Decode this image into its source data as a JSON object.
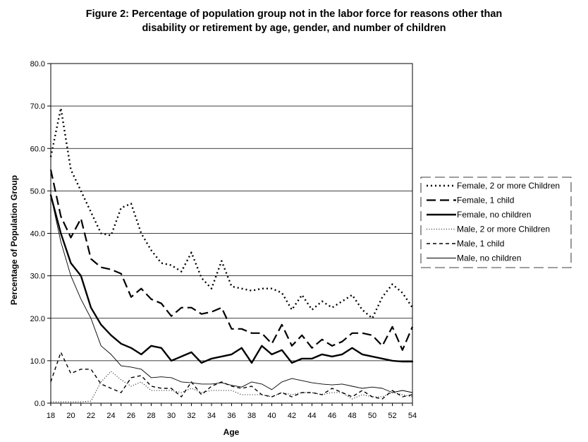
{
  "chart_data": {
    "type": "line",
    "title_line1": "Figure 2: Percentage of population group not in the labor force for reasons other than",
    "title_line2": "disability or retirement by age, gender, and number of children",
    "xlabel": "Age",
    "ylabel": "Percentage of Population Group",
    "xlim": [
      18,
      54
    ],
    "ylim": [
      0,
      80
    ],
    "x_ticks": [
      18,
      20,
      22,
      24,
      26,
      28,
      30,
      32,
      34,
      36,
      38,
      40,
      42,
      44,
      46,
      48,
      50,
      52,
      54
    ],
    "y_ticks": [
      "0.0",
      "10.0",
      "20.0",
      "30.0",
      "40.0",
      "50.0",
      "60.0",
      "70.0",
      "80.0"
    ],
    "grid": "horizontal",
    "legend_position": "right",
    "x": [
      18,
      19,
      20,
      21,
      22,
      23,
      24,
      25,
      26,
      27,
      28,
      29,
      30,
      31,
      32,
      33,
      34,
      35,
      36,
      37,
      38,
      39,
      40,
      41,
      42,
      43,
      44,
      45,
      46,
      47,
      48,
      49,
      50,
      51,
      52,
      53,
      54
    ],
    "series": [
      {
        "name": "Female, 2 or more Children",
        "style": "dotted-bold",
        "values": [
          58,
          69.5,
          55,
          50,
          45,
          40,
          39.5,
          46,
          47,
          40,
          36,
          33,
          32.5,
          31,
          35.5,
          29.5,
          27,
          33.5,
          27.5,
          27,
          26.5,
          27,
          27,
          26,
          22,
          25.5,
          22,
          24,
          22.5,
          24,
          25.5,
          22,
          20,
          25,
          28,
          26,
          22.5
        ]
      },
      {
        "name": "Female, 1 child",
        "style": "long-dash",
        "values": [
          55,
          44,
          39,
          43.5,
          34,
          32,
          31.5,
          30.5,
          25,
          27,
          24.5,
          23.5,
          20.5,
          22.5,
          22.5,
          21,
          21.5,
          22.5,
          17.5,
          17.5,
          16.5,
          16.5,
          14,
          18.5,
          13.5,
          16,
          13,
          15,
          13.5,
          14.5,
          16.5,
          16.5,
          16,
          13.5,
          18,
          12.5,
          18
        ]
      },
      {
        "name": "Female, no children",
        "style": "thick-solid",
        "values": [
          49,
          40,
          33,
          30,
          22.5,
          18.5,
          16,
          14,
          13,
          11.5,
          13.5,
          13,
          10,
          11,
          12,
          9.5,
          10.5,
          11,
          11.5,
          13,
          9.5,
          13.5,
          11.5,
          12.5,
          9.5,
          10.5,
          10.5,
          11.5,
          11,
          11.5,
          13,
          11.5,
          11,
          10.5,
          10,
          9.8,
          9.8
        ]
      },
      {
        "name": "Male, 2 or more Children",
        "style": "fine-dotted",
        "values": [
          0.3,
          0.3,
          0.3,
          0.3,
          0.5,
          5,
          7.5,
          5.5,
          4,
          5,
          3,
          3,
          3,
          2.5,
          3.5,
          2.5,
          3,
          3,
          3,
          2,
          2,
          2,
          1.5,
          2.5,
          2,
          2.5,
          2.5,
          2,
          2.5,
          2.5,
          1,
          2,
          1.5,
          1.5,
          2.5,
          2,
          1.5
        ]
      },
      {
        "name": "Male, 1 child",
        "style": "short-dash",
        "values": [
          5,
          12,
          7,
          8,
          8,
          4.5,
          3.5,
          2.5,
          6,
          6.5,
          4,
          3.5,
          3.5,
          1.5,
          5,
          2,
          4,
          5,
          4,
          3.5,
          4,
          2,
          1.5,
          2.5,
          1.5,
          2.5,
          2.5,
          2,
          3.5,
          2.5,
          1.5,
          3,
          1.5,
          1,
          3,
          1.5,
          2
        ]
      },
      {
        "name": "Male, no children",
        "style": "thin-solid",
        "values": [
          49,
          38,
          30,
          24.5,
          20,
          13.5,
          11.5,
          8.8,
          8.5,
          8,
          6,
          6.2,
          6,
          5,
          4.8,
          4.5,
          4.5,
          4.8,
          4.2,
          3.8,
          5,
          4.5,
          3.2,
          5,
          5.8,
          5.3,
          4.8,
          4.5,
          4.3,
          4.5,
          4,
          3.5,
          3.8,
          3.5,
          2.5,
          3,
          2.5
        ]
      }
    ]
  }
}
